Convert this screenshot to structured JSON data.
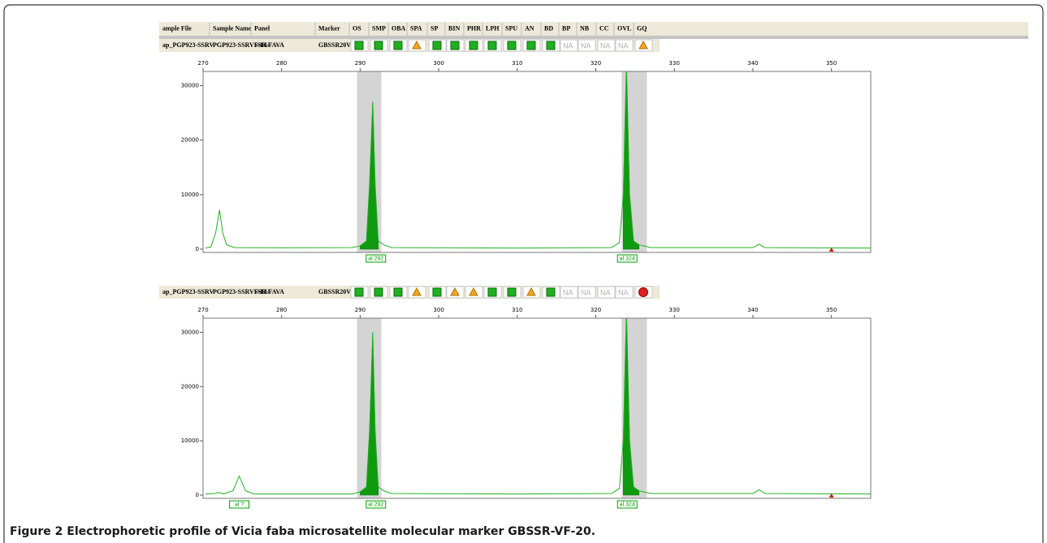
{
  "header": {
    "columns": [
      "ample File",
      "Sample Name",
      "Panel",
      "Marker",
      "OS",
      "SMP",
      "OBA",
      "SPA",
      "SP",
      "BIN",
      "PHR",
      "LPH",
      "SPU",
      "AN",
      "BD",
      "BP",
      "NB",
      "CC",
      "OVL",
      "GQ"
    ]
  },
  "rows": [
    {
      "cells": [
        "ap_PGP923-SSRV",
        "PGP923-SSRVF-EU",
        "SSR-FAVA",
        "GBSSR20VI"
      ],
      "flags": [
        {
          "icon": "square",
          "color": "#1fb01f"
        },
        {
          "icon": "square",
          "color": "#1fb01f"
        },
        {
          "icon": "square",
          "color": "#1fb01f"
        },
        {
          "icon": "triangle",
          "color": "#f5a623"
        },
        {
          "icon": "square",
          "color": "#1fb01f"
        },
        {
          "icon": "square",
          "color": "#1fb01f"
        },
        {
          "icon": "square",
          "color": "#1fb01f"
        },
        {
          "icon": "square",
          "color": "#1fb01f"
        },
        {
          "icon": "square",
          "color": "#1fb01f"
        },
        {
          "icon": "square",
          "color": "#1fb01f"
        },
        {
          "icon": "square",
          "color": "#1fb01f"
        },
        "NA",
        "NA",
        "NA",
        "NA",
        {
          "icon": "triangle",
          "color": "#f5a623"
        }
      ]
    },
    {
      "cells": [
        "ap_PGP923-SSRV",
        "PGP923-SSRVF-EU",
        "SSR-FAVA",
        "GBSSR20VI"
      ],
      "flags": [
        {
          "icon": "square",
          "color": "#1fb01f"
        },
        {
          "icon": "square",
          "color": "#1fb01f"
        },
        {
          "icon": "square",
          "color": "#1fb01f"
        },
        {
          "icon": "triangle",
          "color": "#f5a623"
        },
        {
          "icon": "square",
          "color": "#1fb01f"
        },
        {
          "icon": "triangle",
          "color": "#f5a623"
        },
        {
          "icon": "triangle",
          "color": "#f5a623"
        },
        {
          "icon": "square",
          "color": "#1fb01f"
        },
        {
          "icon": "square",
          "color": "#1fb01f"
        },
        {
          "icon": "triangle",
          "color": "#f5a623"
        },
        {
          "icon": "square",
          "color": "#1fb01f"
        },
        "NA",
        "NA",
        "NA",
        "NA",
        {
          "icon": "circle",
          "color": "#e02020"
        }
      ]
    }
  ],
  "chart_data": [
    {
      "type": "line",
      "color": "#22b022",
      "bin_color": "#d4d4d4",
      "xlim": [
        270,
        355
      ],
      "xticks": [
        270,
        280,
        290,
        300,
        310,
        320,
        330,
        340,
        350
      ],
      "ylim": [
        -600,
        32600
      ],
      "yticks": [
        0,
        10000,
        20000,
        30000
      ],
      "x": [
        270.3,
        271,
        271.6,
        272.1,
        272.5,
        273,
        274,
        280,
        289,
        290,
        290.8,
        291.2,
        291.6,
        291.9,
        292.3,
        293,
        294,
        310,
        322,
        323,
        323.5,
        323.9,
        324.3,
        324.8,
        325.5,
        327,
        340,
        340.8,
        341.5,
        355
      ],
      "values": [
        200,
        400,
        3000,
        7200,
        3000,
        800,
        300,
        250,
        300,
        600,
        1500,
        12000,
        27000,
        12000,
        1500,
        800,
        300,
        200,
        300,
        1200,
        10000,
        34000,
        10000,
        1500,
        800,
        300,
        300,
        900,
        300,
        200
      ],
      "bins": [
        [
          289.6,
          292.7
        ],
        [
          323.3,
          326.5
        ]
      ],
      "alleles": [
        {
          "x": 292,
          "label": "al 292"
        },
        {
          "x": 324,
          "label": "al 324"
        }
      ],
      "marker_x": 350
    },
    {
      "type": "line",
      "color": "#22b022",
      "bin_color": "#d4d4d4",
      "xlim": [
        270,
        355
      ],
      "xticks": [
        270,
        280,
        290,
        300,
        310,
        320,
        330,
        340,
        350
      ],
      "ylim": [
        -600,
        32600
      ],
      "yticks": [
        0,
        10000,
        20000,
        30000
      ],
      "x": [
        270.3,
        271.5,
        272,
        272.6,
        273.8,
        274.6,
        275.4,
        276.5,
        289,
        290,
        290.8,
        291.2,
        291.6,
        291.9,
        292.3,
        293,
        294,
        310,
        322,
        323,
        323.5,
        323.9,
        324.3,
        324.8,
        325.5,
        327,
        340,
        340.8,
        341.5,
        355
      ],
      "values": [
        200,
        300,
        500,
        200,
        800,
        3500,
        800,
        200,
        200,
        600,
        1500,
        12000,
        30000,
        12000,
        1500,
        800,
        300,
        200,
        300,
        1200,
        10000,
        34000,
        10000,
        1500,
        800,
        300,
        300,
        1000,
        300,
        200
      ],
      "bins": [
        [
          289.6,
          292.7
        ],
        [
          323.3,
          326.5
        ]
      ],
      "alleles": [
        {
          "x": 274.6,
          "label": "al ?"
        },
        {
          "x": 292,
          "label": "al 292"
        },
        {
          "x": 324,
          "label": "al 324"
        }
      ],
      "marker_x": 350
    }
  ],
  "caption": {
    "label": "Figure 2",
    "text": "Electrophoretic profile of Vicia faba microsatellite molecular marker GBSSR-VF-20."
  }
}
